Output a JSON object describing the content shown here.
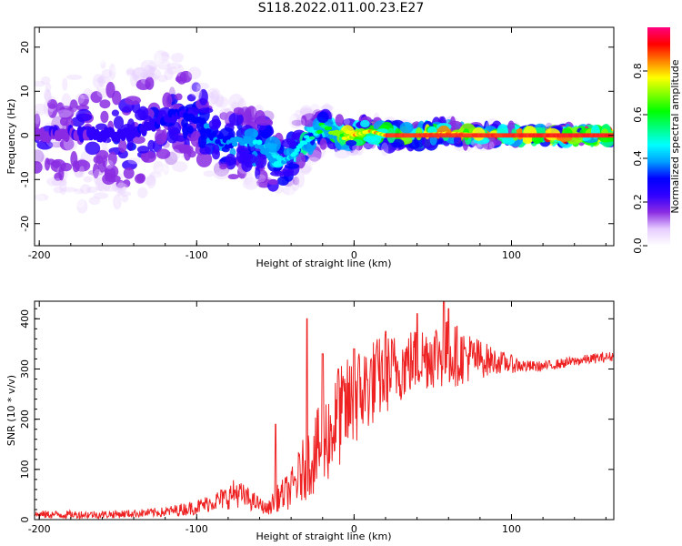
{
  "title": "S118.2022.011.00.23.E27",
  "chart_data": [
    {
      "type": "heatmap",
      "xlabel": "Height of straight line (km)",
      "ylabel": "Frequency (Hz)",
      "xlim": [
        -203,
        165
      ],
      "ylim": [
        -25,
        24.5
      ],
      "xticks": [
        -200,
        -100,
        0,
        100
      ],
      "yticks": [
        -20,
        -10,
        0,
        10,
        20
      ],
      "colorbar": {
        "label": "Normalized spectral amplitude",
        "range": [
          0.0,
          1.0
        ],
        "ticks": [
          0.0,
          0.2,
          0.4,
          0.6,
          0.8
        ],
        "colors": [
          "#ffffff",
          "#e6ccff",
          "#8a2be2",
          "#3000ff",
          "#0000ff",
          "#00a0ff",
          "#00ffff",
          "#00ff80",
          "#00ff00",
          "#80ff00",
          "#ffff00",
          "#ff8000",
          "#ff0000",
          "#ff0080"
        ]
      },
      "ridge": {
        "x": [
          -200,
          -180,
          -160,
          -140,
          -120,
          -110,
          -100,
          -90,
          -80,
          -70,
          -60,
          -50,
          -40,
          -30,
          -20,
          -10,
          0,
          10,
          20,
          40,
          60,
          80,
          100,
          120,
          140,
          165
        ],
        "y": [
          0,
          0.5,
          0,
          0,
          4,
          5,
          4,
          0,
          -2,
          -1,
          -2,
          -6,
          -5,
          -1,
          2,
          0,
          0,
          1,
          0,
          0,
          0.5,
          0,
          0,
          0,
          0,
          0
        ],
        "amp": [
          0.2,
          0.22,
          0.25,
          0.28,
          0.3,
          0.32,
          0.35,
          0.35,
          0.38,
          0.4,
          0.42,
          0.42,
          0.45,
          0.5,
          0.6,
          0.7,
          0.78,
          0.78,
          0.8,
          0.8,
          0.8,
          0.82,
          0.85,
          0.9,
          0.95,
          0.95
        ],
        "spread": [
          10,
          10,
          10,
          9,
          8,
          7,
          6,
          5,
          5,
          5,
          5,
          5,
          4,
          3,
          2,
          1.5,
          1.2,
          1.2,
          1,
          1,
          0.8,
          0.6,
          0.5,
          0.4,
          0.4,
          0.4
        ]
      }
    },
    {
      "type": "line",
      "xlabel": "Height of straight line (km)",
      "ylabel": "SNR (10 * v/v)",
      "xlim": [
        -203,
        165
      ],
      "ylim": [
        0,
        435
      ],
      "xticks": [
        -200,
        -100,
        0,
        100
      ],
      "yticks": [
        0,
        100,
        200,
        300,
        400
      ],
      "series": [
        {
          "color": "#ee2222",
          "x": [
            -200,
            -180,
            -160,
            -140,
            -120,
            -100,
            -90,
            -80,
            -75,
            -70,
            -60,
            -55,
            -50,
            -40,
            -30,
            -20,
            -10,
            0,
            10,
            20,
            30,
            40,
            50,
            60,
            70,
            80,
            90,
            100,
            110,
            120,
            130,
            140,
            150,
            165
          ],
          "mean": [
            10,
            10,
            10,
            12,
            15,
            25,
            35,
            45,
            55,
            45,
            30,
            20,
            40,
            60,
            110,
            150,
            200,
            240,
            270,
            290,
            305,
            320,
            330,
            330,
            325,
            320,
            315,
            310,
            305,
            305,
            310,
            315,
            320,
            325
          ],
          "amp": [
            8,
            8,
            8,
            8,
            10,
            15,
            18,
            25,
            30,
            25,
            15,
            12,
            25,
            40,
            70,
            90,
            100,
            100,
            90,
            80,
            70,
            65,
            70,
            70,
            55,
            40,
            25,
            18,
            12,
            10,
            10,
            10,
            10,
            10
          ],
          "peaks": [
            [
              -50,
              190
            ],
            [
              -30,
              400
            ],
            [
              -20,
              330
            ],
            [
              -10,
              300
            ],
            [
              0,
              340
            ],
            [
              20,
              375
            ],
            [
              40,
              410
            ],
            [
              57,
              435
            ],
            [
              60,
              420
            ]
          ]
        }
      ]
    }
  ]
}
